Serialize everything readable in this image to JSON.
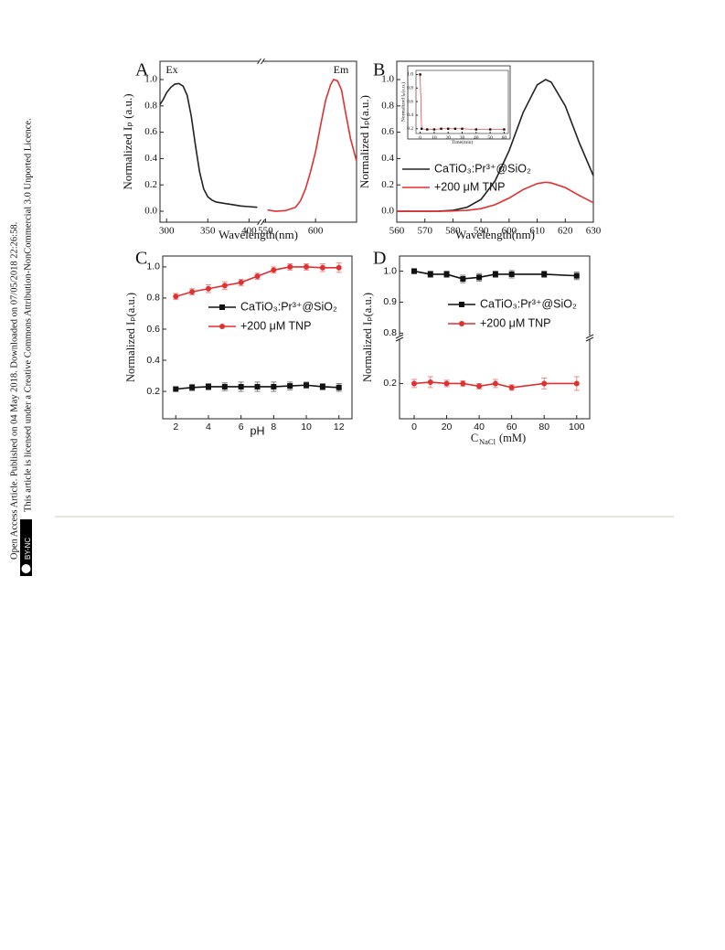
{
  "sidebar": {
    "line1": "Open Access Article. Published on 04 May 2018. Downloaded on 07/05/2018 22:26:58.",
    "line2": "This article is licensed under a Creative Commons Attribution-NonCommercial 3.0 Unported Licence.",
    "badge": "BY-NC"
  },
  "chart_data": [
    {
      "type": "line",
      "label": "A",
      "xlabel": "Wavelength(nm)",
      "ylabel": "Normalized Iₚ (a.u.)",
      "annotations": [
        "Ex",
        "Em"
      ],
      "xlim": [
        [
          292,
          414
        ],
        [
          546,
          641
        ]
      ],
      "xticks": [
        300,
        350,
        400,
        550,
        600
      ],
      "ylim": [
        -0.083,
        1.139
      ],
      "yticks": [
        {
          "value": 0,
          "label": "0.0"
        },
        0.2,
        0.4,
        0.6,
        0.8,
        {
          "value": 1,
          "label": "1.0"
        }
      ],
      "series": [
        {
          "color": "#222222",
          "x": [
            292,
            296,
            300,
            305,
            310,
            315,
            320,
            325,
            330,
            335,
            340,
            345,
            350,
            355,
            360,
            370,
            380,
            390,
            400,
            410
          ],
          "values": [
            0.81,
            0.85,
            0.9,
            0.94,
            0.965,
            0.97,
            0.95,
            0.88,
            0.72,
            0.5,
            0.3,
            0.17,
            0.11,
            0.085,
            0.07,
            0.06,
            0.05,
            0.04,
            0.035,
            0.03
          ]
        },
        {
          "color": "#e03030",
          "x": [
            552,
            560,
            570,
            580,
            585,
            590,
            595,
            600,
            605,
            610,
            615,
            618,
            622,
            626,
            630,
            635,
            641
          ],
          "values": [
            0.01,
            0.0,
            0.005,
            0.03,
            0.08,
            0.17,
            0.3,
            0.45,
            0.65,
            0.84,
            0.96,
            1.0,
            0.99,
            0.92,
            0.75,
            0.55,
            0.38
          ]
        }
      ]
    },
    {
      "type": "line",
      "label": "B",
      "xlabel": "Wavelength(nm)",
      "ylabel": "Normalized Iₚ(a.u.)",
      "xlim": [
        560,
        630
      ],
      "xticks": [
        560,
        570,
        580,
        590,
        600,
        610,
        620,
        630
      ],
      "ylim": [
        -0.083,
        1.139
      ],
      "yticks": [
        {
          "value": 0,
          "label": "0.0"
        },
        0.2,
        0.4,
        0.6,
        0.8,
        {
          "value": 1,
          "label": "1.0"
        }
      ],
      "series": [
        {
          "name": "CaTiO₃:Pr³⁺@SiO₂",
          "color": "#222222",
          "x": [
            560,
            565,
            570,
            575,
            580,
            585,
            590,
            595,
            600,
            605,
            610,
            613,
            615,
            620,
            625,
            630
          ],
          "values": [
            0,
            0,
            0,
            0.001,
            0.007,
            0.03,
            0.09,
            0.23,
            0.46,
            0.75,
            0.96,
            1.0,
            0.98,
            0.8,
            0.52,
            0.27
          ]
        },
        {
          "name": "+200 μM TNP",
          "color": "#e03030",
          "x": [
            560,
            565,
            570,
            575,
            580,
            585,
            590,
            595,
            600,
            605,
            610,
            613,
            615,
            620,
            625,
            630
          ],
          "values": [
            0,
            0,
            0,
            0,
            0.002,
            0.007,
            0.02,
            0.05,
            0.1,
            0.165,
            0.21,
            0.22,
            0.215,
            0.18,
            0.12,
            0.065
          ]
        }
      ],
      "inset": {
        "type": "line",
        "xlabel": "Time(min)",
        "ylabel": "Normalized Iₚ(a.u.)",
        "xlim": [
          -3,
          63
        ],
        "xticks": [
          0,
          10,
          20,
          30,
          40,
          50,
          60
        ],
        "ylim": [
          0.13,
          1.06
        ],
        "yticks": [
          0.2,
          0.4,
          0.6,
          0.8,
          {
            "value": 1,
            "label": "1.0"
          }
        ],
        "series": [
          {
            "color": "#e03030",
            "marker": "square",
            "x": [
              0,
              1,
              5,
              10,
              15,
              20,
              25,
              30,
              40,
              50,
              60
            ],
            "values": [
              1.0,
              0.2,
              0.19,
              0.19,
              0.2,
              0.2,
              0.2,
              0.2,
              0.19,
              0.19,
              0.19
            ]
          }
        ]
      }
    },
    {
      "type": "line",
      "label": "C",
      "xlabel": "pH",
      "ylabel": "Normalized Iₚ(a.u.)",
      "x": [
        2,
        3,
        4,
        5,
        6,
        7,
        8,
        9,
        10,
        11,
        12
      ],
      "xlim": [
        1.2,
        12.8
      ],
      "xticks": [
        2,
        4,
        6,
        8,
        10,
        12
      ],
      "ylim": [
        0.024,
        1.07
      ],
      "yticks": [
        0.2,
        0.4,
        0.6,
        0.8,
        {
          "value": 1,
          "label": "1.0"
        }
      ],
      "series": [
        {
          "name": "CaTiO₃:Pr³⁺@SiO₂",
          "color": "#111111",
          "marker": "square",
          "values": [
            0.215,
            0.225,
            0.23,
            0.23,
            0.23,
            0.23,
            0.23,
            0.235,
            0.24,
            0.23,
            0.225
          ],
          "errors": [
            0.015,
            0.02,
            0.02,
            0.025,
            0.03,
            0.03,
            0.03,
            0.025,
            0.02,
            0.02,
            0.025
          ]
        },
        {
          "name": "+200 μM TNP",
          "color": "#e03030",
          "marker": "circle",
          "values": [
            0.81,
            0.84,
            0.86,
            0.88,
            0.9,
            0.94,
            0.98,
            1.0,
            1.0,
            0.995,
            0.995
          ],
          "errors": [
            0.02,
            0.02,
            0.025,
            0.025,
            0.02,
            0.02,
            0.02,
            0.02,
            0.02,
            0.025,
            0.03
          ]
        }
      ]
    },
    {
      "type": "line",
      "label": "D",
      "xlabel": "C",
      "xlabel_sub": "NaCl",
      "xlabel_unit": "(mM)",
      "ylabel": "Normalized Iₚ(a.u.)",
      "x": [
        0,
        10,
        20,
        30,
        40,
        50,
        60,
        80,
        100
      ],
      "xlim": [
        -9,
        108
      ],
      "xticks": [
        0,
        20,
        40,
        60,
        80,
        100
      ],
      "ylim": [
        [
          0.07,
          0.36
        ],
        [
          0.795,
          1.04
        ]
      ],
      "yticks": [
        0.2,
        0.8,
        0.9,
        {
          "value": 1,
          "label": "1.0"
        }
      ],
      "series": [
        {
          "name": "CaTiO₃:Pr³⁺@SiO₂",
          "color": "#111111",
          "marker": "square",
          "values": [
            1.0,
            0.99,
            0.99,
            0.975,
            0.98,
            0.99,
            0.99,
            0.99,
            0.985
          ],
          "errors": [
            0.008,
            0.01,
            0.01,
            0.012,
            0.012,
            0.01,
            0.012,
            0.01,
            0.012
          ]
        },
        {
          "name": "+200 μM TNP",
          "color": "#e03030",
          "marker": "circle",
          "values": [
            0.2,
            0.205,
            0.2,
            0.2,
            0.19,
            0.2,
            0.185,
            0.2,
            0.2
          ],
          "errors": [
            0.015,
            0.02,
            0.012,
            0.01,
            0.01,
            0.015,
            0.01,
            0.02,
            0.025
          ]
        }
      ]
    }
  ]
}
